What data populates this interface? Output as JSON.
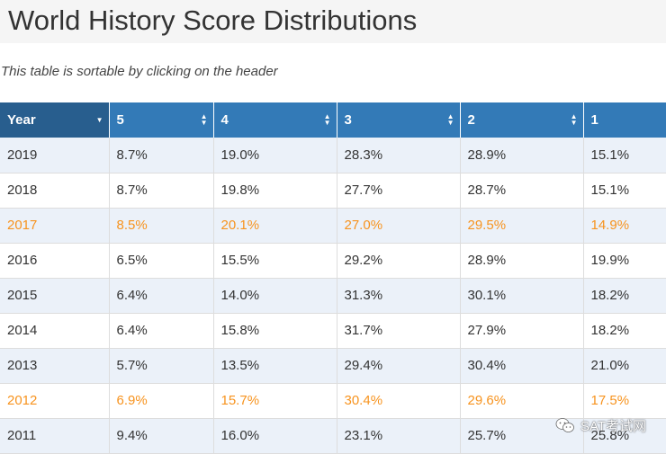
{
  "page": {
    "title": "World History Score Distributions",
    "note": "This table is sortable by clicking on the header"
  },
  "table": {
    "headers": [
      "Year",
      "5",
      "4",
      "3",
      "2",
      "1"
    ],
    "rows": [
      [
        "2019",
        "8.7%",
        "19.0%",
        "28.3%",
        "28.9%",
        "15.1%"
      ],
      [
        "2018",
        "8.7%",
        "19.8%",
        "27.7%",
        "28.7%",
        "15.1%"
      ],
      [
        "2017",
        "8.5%",
        "20.1%",
        "27.0%",
        "29.5%",
        "14.9%"
      ],
      [
        "2016",
        "6.5%",
        "15.5%",
        "29.2%",
        "28.9%",
        "19.9%"
      ],
      [
        "2015",
        "6.4%",
        "14.0%",
        "31.3%",
        "30.1%",
        "18.2%"
      ],
      [
        "2014",
        "6.4%",
        "15.8%",
        "31.7%",
        "27.9%",
        "18.2%"
      ],
      [
        "2013",
        "5.7%",
        "13.5%",
        "29.4%",
        "30.4%",
        "21.0%"
      ],
      [
        "2012",
        "6.9%",
        "15.7%",
        "30.4%",
        "29.6%",
        "17.5%"
      ],
      [
        "2011",
        "9.4%",
        "16.0%",
        "23.1%",
        "25.7%",
        "25.8%"
      ]
    ]
  },
  "watermark": {
    "text": "SAT考试网",
    "icon": "wechat-icon"
  },
  "colors": {
    "header_bg": "#337ab7",
    "header_active_bg": "#285e8e",
    "stripe_bg": "#ebf1f9",
    "highlight_text": "#f7931e"
  }
}
